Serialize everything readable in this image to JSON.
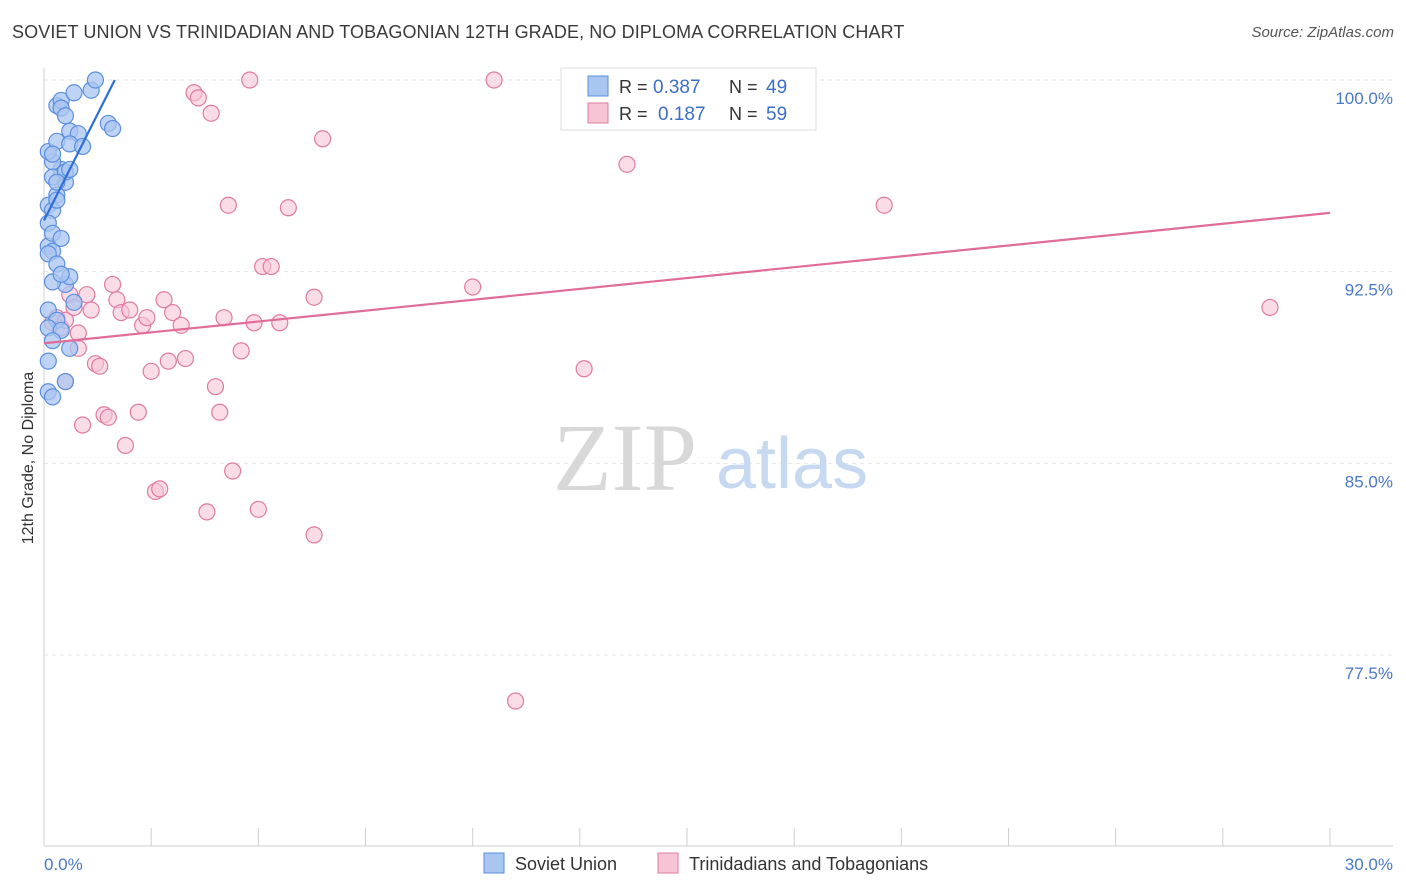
{
  "title": "SOVIET UNION VS TRINIDADIAN AND TOBAGONIAN 12TH GRADE, NO DIPLOMA CORRELATION CHART",
  "source": "Source: ZipAtlas.com",
  "watermark": {
    "zip": "ZIP",
    "atlas": "atlas"
  },
  "stats": [
    {
      "r_label": "R =",
      "r": "0.387",
      "n_label": "N =",
      "n": "49"
    },
    {
      "r_label": "R =",
      "r": "0.187",
      "n_label": "N =",
      "n": "59"
    }
  ],
  "chart_data": {
    "type": "scatter",
    "ylabel": "12th Grade, No Diploma",
    "xlabel": "",
    "xlim": [
      0,
      30
    ],
    "ylim": [
      70.0,
      101.0
    ],
    "x_tick_labels": [
      "0.0%",
      "30.0%"
    ],
    "y_ticks": [
      {
        "value": 100.0,
        "label": "100.0%"
      },
      {
        "value": 92.5,
        "label": "92.5%"
      },
      {
        "value": 85.0,
        "label": "85.0%"
      },
      {
        "value": 77.5,
        "label": "77.5%"
      }
    ],
    "grid": true,
    "legend_position": "bottom-center",
    "series": [
      {
        "name": "Soviet Union",
        "color": "#5b8ee0",
        "fill": "#a9c6f0",
        "trend": {
          "x": [
            0.0,
            1.65
          ],
          "y": [
            94.5,
            100.0
          ]
        },
        "points": [
          [
            0.1,
            93.5
          ],
          [
            0.2,
            93.3
          ],
          [
            0.3,
            95.5
          ],
          [
            0.4,
            96.5
          ],
          [
            0.2,
            96.8
          ],
          [
            0.1,
            97.2
          ],
          [
            0.3,
            97.6
          ],
          [
            0.5,
            96.0
          ],
          [
            0.3,
            99.0
          ],
          [
            0.4,
            99.2
          ],
          [
            0.6,
            98.0
          ],
          [
            0.7,
            99.5
          ],
          [
            1.1,
            99.6
          ],
          [
            1.2,
            100.0
          ],
          [
            1.5,
            98.3
          ],
          [
            1.6,
            98.1
          ],
          [
            0.4,
            98.9
          ],
          [
            0.8,
            97.9
          ],
          [
            0.6,
            97.5
          ],
          [
            0.9,
            97.4
          ],
          [
            0.2,
            96.2
          ],
          [
            0.5,
            96.4
          ],
          [
            0.3,
            96.0
          ],
          [
            0.1,
            95.1
          ],
          [
            0.2,
            94.9
          ],
          [
            0.1,
            94.4
          ],
          [
            0.2,
            94.0
          ],
          [
            0.4,
            93.8
          ],
          [
            0.1,
            93.2
          ],
          [
            0.3,
            92.8
          ],
          [
            0.5,
            92.0
          ],
          [
            0.6,
            92.3
          ],
          [
            0.2,
            92.1
          ],
          [
            0.4,
            92.4
          ],
          [
            0.1,
            91.0
          ],
          [
            0.3,
            90.6
          ],
          [
            0.7,
            91.3
          ],
          [
            0.1,
            90.3
          ],
          [
            0.4,
            90.2
          ],
          [
            0.2,
            89.8
          ],
          [
            0.6,
            89.5
          ],
          [
            0.1,
            89.0
          ],
          [
            0.1,
            87.8
          ],
          [
            0.2,
            87.6
          ],
          [
            0.5,
            88.2
          ],
          [
            0.3,
            95.3
          ],
          [
            0.6,
            96.5
          ],
          [
            0.2,
            97.1
          ],
          [
            0.5,
            98.6
          ]
        ]
      },
      {
        "name": "Trinidadians and Tobagonians",
        "color": "#e07aa0",
        "fill": "#f6c4d5",
        "trend": {
          "x": [
            0.0,
            30.0
          ],
          "y": [
            89.7,
            94.8
          ]
        },
        "points": [
          [
            0.2,
            90.5
          ],
          [
            0.3,
            90.7
          ],
          [
            0.4,
            90.3
          ],
          [
            0.5,
            90.6
          ],
          [
            0.5,
            88.2
          ],
          [
            0.6,
            91.6
          ],
          [
            0.7,
            91.1
          ],
          [
            0.8,
            89.5
          ],
          [
            0.9,
            86.5
          ],
          [
            1.0,
            91.6
          ],
          [
            1.1,
            91.0
          ],
          [
            1.2,
            88.9
          ],
          [
            1.3,
            88.8
          ],
          [
            1.4,
            86.9
          ],
          [
            1.6,
            92.0
          ],
          [
            1.7,
            91.4
          ],
          [
            1.8,
            90.9
          ],
          [
            1.9,
            85.7
          ],
          [
            2.0,
            91.0
          ],
          [
            2.2,
            87.0
          ],
          [
            2.3,
            90.4
          ],
          [
            2.4,
            90.7
          ],
          [
            2.5,
            88.6
          ],
          [
            2.6,
            83.9
          ],
          [
            2.8,
            91.4
          ],
          [
            2.9,
            89.0
          ],
          [
            3.0,
            90.9
          ],
          [
            3.2,
            90.4
          ],
          [
            3.3,
            89.1
          ],
          [
            3.5,
            99.5
          ],
          [
            3.8,
            83.1
          ],
          [
            3.9,
            98.7
          ],
          [
            4.0,
            88.0
          ],
          [
            4.1,
            87.0
          ],
          [
            4.2,
            90.7
          ],
          [
            4.3,
            95.1
          ],
          [
            4.4,
            84.7
          ],
          [
            4.6,
            89.4
          ],
          [
            4.8,
            100.0
          ],
          [
            4.9,
            90.5
          ],
          [
            5.0,
            83.2
          ],
          [
            5.1,
            92.7
          ],
          [
            5.3,
            92.7
          ],
          [
            5.5,
            90.5
          ],
          [
            5.7,
            95.0
          ],
          [
            6.3,
            91.5
          ],
          [
            6.3,
            82.2
          ],
          [
            6.5,
            97.7
          ],
          [
            10.0,
            91.9
          ],
          [
            10.5,
            100.0
          ],
          [
            11.0,
            75.7
          ],
          [
            12.6,
            88.7
          ],
          [
            13.6,
            96.7
          ],
          [
            19.6,
            95.1
          ],
          [
            28.6,
            91.1
          ],
          [
            1.5,
            86.8
          ],
          [
            2.7,
            84.0
          ],
          [
            3.6,
            99.3
          ],
          [
            0.8,
            90.1
          ]
        ]
      }
    ]
  }
}
